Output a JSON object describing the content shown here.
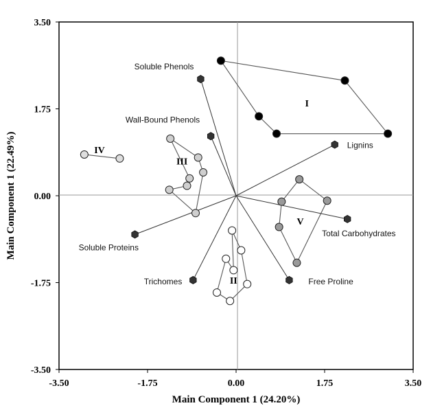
{
  "chart_data": {
    "type": "scatter",
    "subtype": "pca-biplot",
    "xlabel": "Main Component 1 (24.20%)",
    "ylabel": "Main Component 1 (22.49%)",
    "xlim": [
      -3.5,
      3.5
    ],
    "ylim": [
      -3.5,
      3.5
    ],
    "x_ticks": [
      "-3.50",
      "-1.75",
      "0.00",
      "1.75",
      "3.50"
    ],
    "y_ticks": [
      "3.50",
      "1.75",
      "0.00",
      "-1.75",
      "-3.50"
    ],
    "grid": false,
    "colors": {
      "vector": "#333333",
      "vector_point": "#333333",
      "group_I": "#000000",
      "group_II": "#ffffff",
      "group_III": "#cfcfcf",
      "group_IV": "#dedede",
      "group_V": "#9a9a9a",
      "outline": "#222222"
    },
    "vectors": [
      {
        "name": "Soluble Phenols",
        "x": -0.7,
        "y": 2.35
      },
      {
        "name": "Wall-Bound Phenols",
        "x": -0.5,
        "y": 1.2
      },
      {
        "name": "Lignins",
        "x": 1.95,
        "y": 1.03
      },
      {
        "name": "Total Carbohydrates",
        "x": 2.2,
        "y": -0.47
      },
      {
        "name": "Free Proline",
        "x": 1.05,
        "y": -1.7
      },
      {
        "name": "Trichomes",
        "x": -0.85,
        "y": -1.7
      },
      {
        "name": "Soluble Proteins",
        "x": -2.0,
        "y": -0.78
      }
    ],
    "groups": [
      {
        "name": "I",
        "label_x": 1.4,
        "label_y": 1.8,
        "points": [
          [
            -0.3,
            2.72
          ],
          [
            0.45,
            1.6
          ],
          [
            0.8,
            1.25
          ],
          [
            3.0,
            1.25
          ],
          [
            2.15,
            2.32
          ]
        ]
      },
      {
        "name": "II",
        "label_x": -0.05,
        "label_y": -1.77,
        "points": [
          [
            -0.08,
            -0.7
          ],
          [
            0.1,
            -1.1
          ],
          [
            0.22,
            -1.78
          ],
          [
            -0.12,
            -2.12
          ],
          [
            -0.38,
            -1.95
          ],
          [
            -0.2,
            -1.27
          ],
          [
            -0.05,
            -1.5
          ]
        ]
      },
      {
        "name": "III",
        "label_x": -1.07,
        "label_y": 0.63,
        "points": [
          [
            -1.3,
            1.15
          ],
          [
            -0.75,
            0.77
          ],
          [
            -0.65,
            0.47
          ],
          [
            -0.8,
            -0.35
          ],
          [
            -1.32,
            0.12
          ],
          [
            -0.97,
            0.2
          ],
          [
            -0.92,
            0.35
          ]
        ]
      },
      {
        "name": "IV",
        "label_x": -2.7,
        "label_y": 0.86,
        "points": [
          [
            -3.0,
            0.83
          ],
          [
            -2.3,
            0.75
          ]
        ]
      },
      {
        "name": "V",
        "label_x": 1.27,
        "label_y": -0.58,
        "points": [
          [
            1.25,
            0.33
          ],
          [
            1.8,
            -0.1
          ],
          [
            1.2,
            -1.35
          ],
          [
            0.85,
            -0.63
          ],
          [
            0.9,
            -0.12
          ]
        ]
      }
    ]
  }
}
